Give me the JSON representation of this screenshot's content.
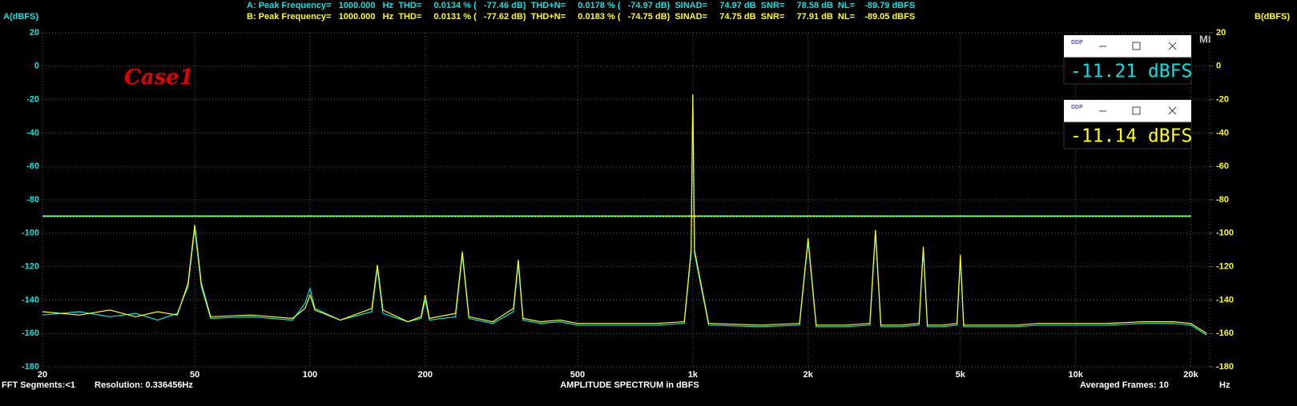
{
  "header": {
    "line_a": "A: Peak Frequency=   1000.000   Hz  THD=     0.0134 % (   -77.46 dB)  THD+N=     0.0178 % (   -74.97 dB)  SINAD=     74.97 dB  SNR=     78.58 dB  NL=    -89.79 dBFS",
    "line_b": "B: Peak Frequency=   1000.000   Hz  THD=     0.0131 % (   -77.62 dB)  THD+N=     0.0183 % (   -74.75 dB)  SINAD=     74.75 dB  SNR=     77.91 dB  NL=    -89.05 dBFS"
  },
  "status": {
    "segments": "FFT Segments:<1",
    "resolution": "Resolution: 0.336456Hz",
    "frames": "Averaged Frames: 10",
    "side_label": "MI"
  },
  "meters": [
    {
      "icon": "DDP",
      "reading": "-11.21 dBFS",
      "color": "#00e5e5"
    },
    {
      "icon": "DDP",
      "reading": "-11.14 dBFS",
      "color": "#ffff00"
    }
  ],
  "chart_data": {
    "type": "line",
    "x_label": "AMPLITUDE SPECTRUM in dBFS",
    "x_unit": "Hz",
    "y_label": "A(dBFS)",
    "y2_label": "B(dBFS)",
    "annotation": "Case1",
    "x_log": true,
    "grid": true,
    "xlim": [
      20,
      22400
    ],
    "ylim": [
      -180,
      20
    ],
    "y2lim": [
      -180,
      20
    ],
    "xticks": [
      20,
      50,
      100,
      200,
      500,
      {
        "value": 1000,
        "label": "1k"
      },
      {
        "value": 2000,
        "label": "2k"
      },
      {
        "value": 5000,
        "label": "5k"
      },
      {
        "value": 10000,
        "label": "10k"
      },
      {
        "value": 20000,
        "label": "20k"
      }
    ],
    "yticks": [
      20,
      0,
      -20,
      -40,
      -60,
      -80,
      -100,
      -120,
      -140,
      -160,
      -180
    ],
    "y2ticks": [
      20,
      0,
      -20,
      -40,
      -60,
      -80,
      -100,
      -120,
      -140,
      -160,
      -180
    ],
    "reference_line": -89.79,
    "x": [
      20,
      25,
      30,
      35,
      40,
      45,
      48,
      50,
      52,
      55,
      70,
      90,
      97,
      100,
      103,
      120,
      145,
      150,
      155,
      180,
      195,
      200,
      205,
      240,
      250,
      260,
      300,
      340,
      350,
      360,
      400,
      450,
      500,
      600,
      700,
      800,
      950,
      990,
      1000,
      1010,
      1100,
      1500,
      1900,
      2000,
      2100,
      2500,
      2900,
      3000,
      3100,
      3500,
      3900,
      4000,
      4100,
      4500,
      4900,
      5000,
      5100,
      6000,
      7000,
      8000,
      10000,
      12000,
      15000,
      18000,
      20000,
      22000
    ],
    "series": [
      {
        "color": "#00e5e5",
        "values": [
          -149,
          -147,
          -150,
          -148,
          -152,
          -148,
          -132,
          -97,
          -132,
          -151,
          -150,
          -152,
          -142,
          -133,
          -145,
          -152,
          -147,
          -121,
          -148,
          -153,
          -151,
          -140,
          -152,
          -150,
          -113,
          -151,
          -154,
          -147,
          -118,
          -152,
          -154,
          -153,
          -155,
          -155,
          -155,
          -155,
          -154,
          -112,
          -17,
          -112,
          -155,
          -156,
          -155,
          -105,
          -156,
          -156,
          -155,
          -100,
          -156,
          -156,
          -155,
          -110,
          -156,
          -156,
          -155,
          -115,
          -156,
          -156,
          -156,
          -155,
          -155,
          -155,
          -154,
          -154,
          -155,
          -161
        ]
      },
      {
        "color": "#ffff00",
        "values": [
          -147,
          -149,
          -146,
          -150,
          -147,
          -149,
          -130,
          -95,
          -130,
          -150,
          -149,
          -151,
          -145,
          -137,
          -146,
          -152,
          -145,
          -119,
          -146,
          -153,
          -150,
          -137,
          -151,
          -148,
          -111,
          -150,
          -153,
          -145,
          -116,
          -151,
          -153,
          -152,
          -154,
          -154,
          -154,
          -154,
          -153,
          -110,
          -17,
          -110,
          -154,
          -155,
          -154,
          -103,
          -155,
          -155,
          -154,
          -98,
          -155,
          -155,
          -154,
          -108,
          -155,
          -155,
          -154,
          -113,
          -155,
          -155,
          -155,
          -154,
          -154,
          -154,
          -153,
          -153,
          -154,
          -160
        ]
      }
    ]
  }
}
